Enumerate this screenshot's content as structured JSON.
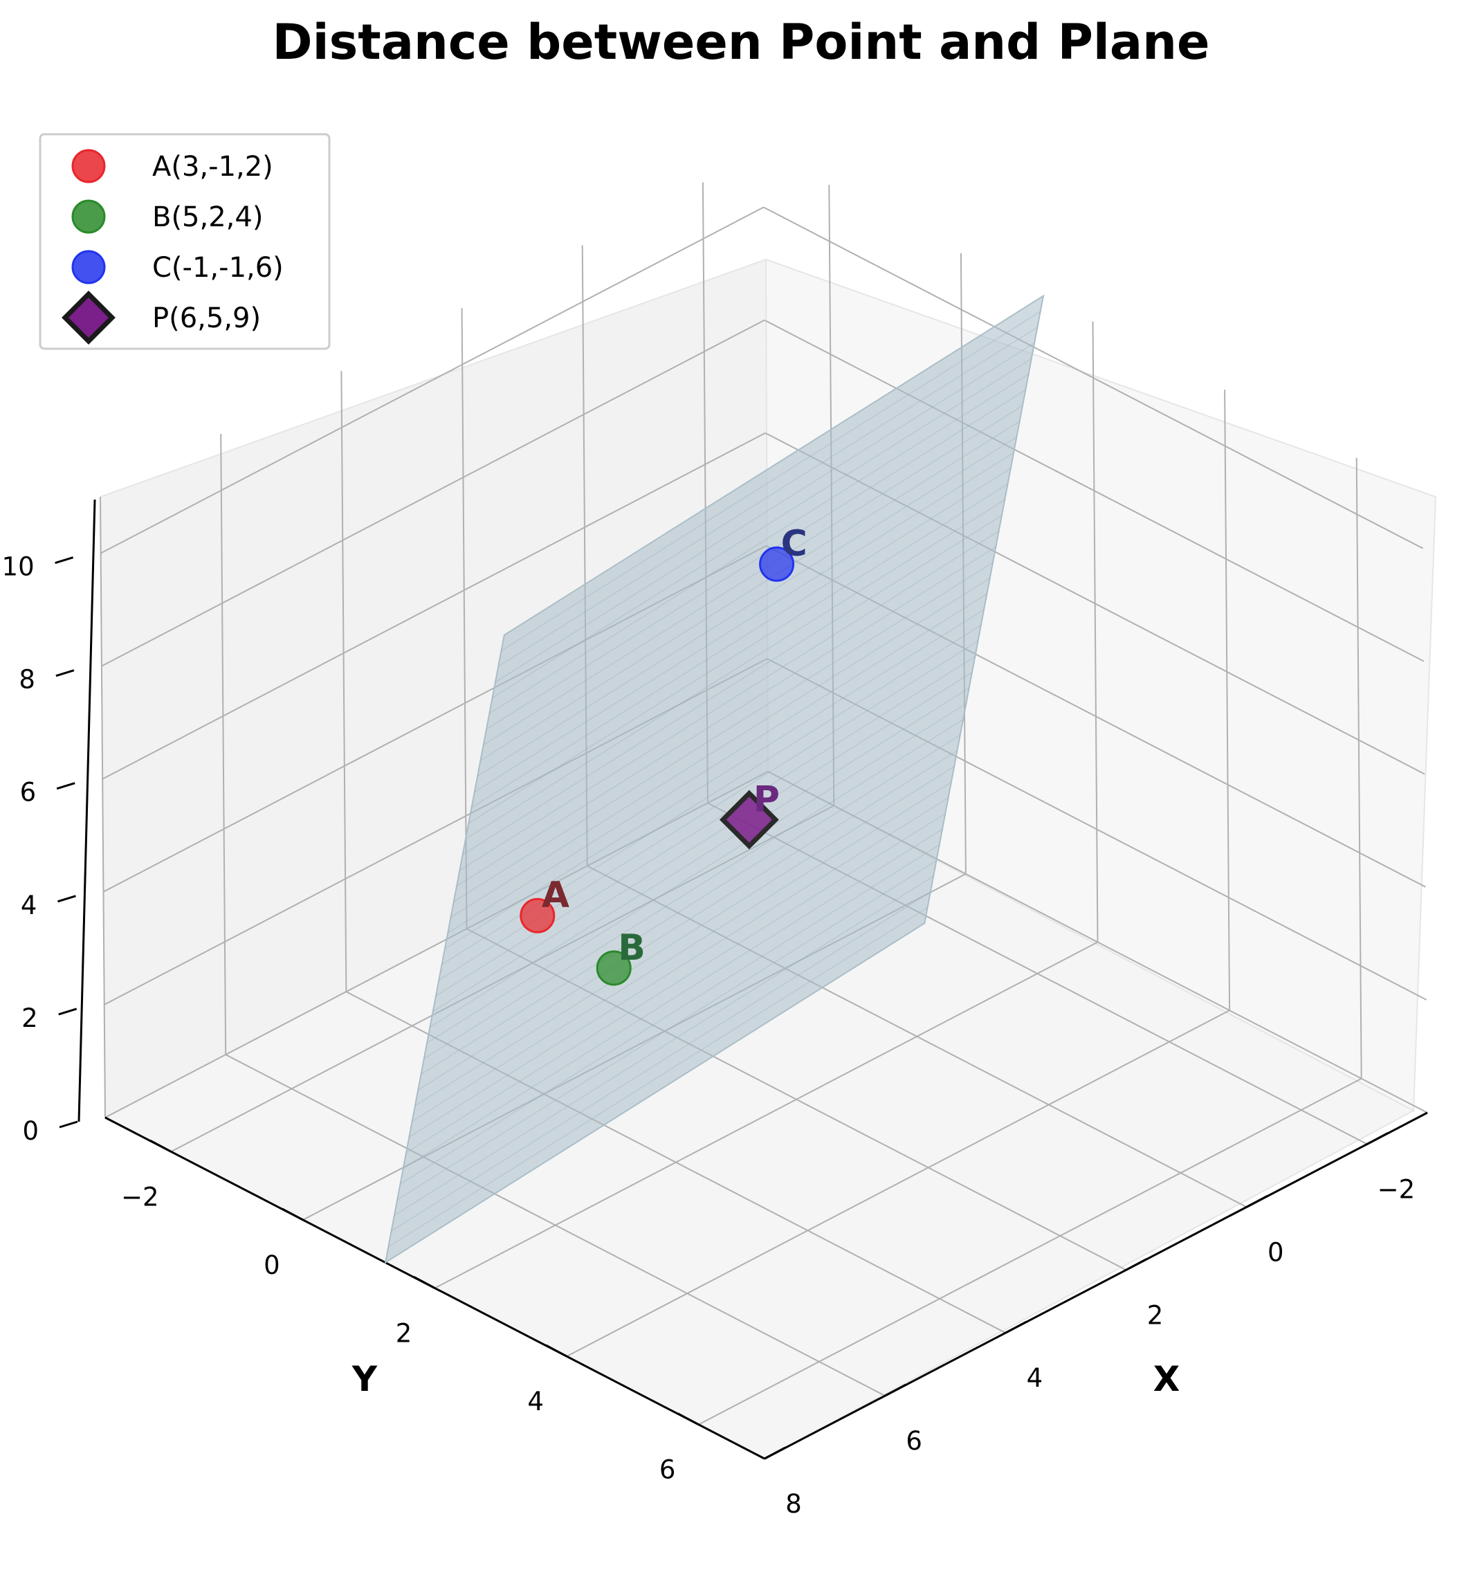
{
  "chart_data": {
    "type": "scatter3d",
    "title": "Distance between Point and Plane",
    "xlabel": "X",
    "ylabel": "Y",
    "zlabel": "",
    "xlim": [
      -3,
      8
    ],
    "ylim": [
      -3,
      7
    ],
    "zlim": [
      0,
      11
    ],
    "x_ticks": [
      "−2",
      "0",
      "2",
      "4",
      "6",
      "8"
    ],
    "y_ticks": [
      "−2",
      "0",
      "2",
      "4",
      "6"
    ],
    "z_ticks": [
      "0",
      "2",
      "4",
      "6",
      "8",
      "10"
    ],
    "grid": true,
    "legend_position": "top-left",
    "plane": {
      "through": [
        "A",
        "B",
        "C"
      ],
      "color": "#a9bec8"
    },
    "points": [
      {
        "id": "A",
        "label": "A",
        "legend": "A(3,-1,2)",
        "x": 3,
        "y": -1,
        "z": 2,
        "color": "#e8262b",
        "text_color": "#7a2a30",
        "marker": "circle"
      },
      {
        "id": "B",
        "label": "B",
        "legend": "B(5,2,4)",
        "x": 5,
        "y": 2,
        "z": 4,
        "color": "#2a8a2a",
        "text_color": "#2a6a3a",
        "marker": "circle"
      },
      {
        "id": "C",
        "label": "C",
        "legend": "C(-1,-1,6)",
        "x": -1,
        "y": -1,
        "z": 6,
        "color": "#2233ee",
        "text_color": "#2a3580",
        "marker": "circle"
      },
      {
        "id": "P",
        "label": "P",
        "legend": "P(6,5,9)",
        "x": 6,
        "y": 5,
        "z": 9,
        "color": "#7b1f8a",
        "text_color": "#6a2a80",
        "marker": "diamond"
      }
    ]
  }
}
